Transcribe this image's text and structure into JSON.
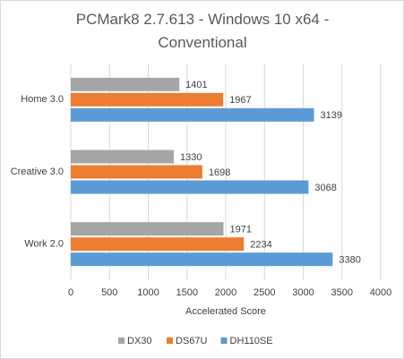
{
  "chart_data": {
    "type": "hbar",
    "title": "PCMark8 2.7.613 - Windows 10 x64 - Conventional",
    "x_label": "Accelerated Score",
    "categories": [
      "Home 3.0",
      "Creative 3.0",
      "Work 2.0"
    ],
    "series": [
      {
        "name": "DX30",
        "color": "#a5a5a5",
        "values": [
          1401,
          1330,
          1971
        ]
      },
      {
        "name": "DS67U",
        "color": "#ed7d31",
        "values": [
          1967,
          1698,
          2234
        ]
      },
      {
        "name": "DH110SE",
        "color": "#5b9bd5",
        "values": [
          3139,
          3068,
          3380
        ]
      }
    ],
    "xlim": [
      0,
      4000
    ],
    "xticks": [
      0,
      500,
      1000,
      1500,
      2000,
      2500,
      3000,
      3500,
      4000
    ],
    "grid": true,
    "legend": "bottom"
  }
}
